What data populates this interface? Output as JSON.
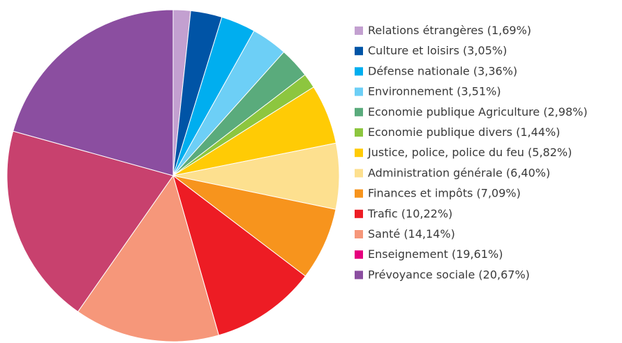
{
  "chart_data": {
    "type": "pie",
    "categories": [
      "Relations étrangères",
      "Culture et loisirs",
      "Défense nationale",
      "Environnement",
      "Economie publique Agriculture",
      "Economie publique divers",
      "Justice, police, police du feu",
      "Administration générale",
      "Finances et impôts",
      "Trafic",
      "Santé",
      "Enseignement",
      "Prévoyance sociale"
    ],
    "values": [
      1.69,
      3.05,
      3.36,
      3.51,
      2.98,
      1.44,
      5.82,
      6.4,
      7.09,
      10.22,
      14.14,
      19.61,
      20.67
    ],
    "value_labels": [
      "(1,69%)",
      "(3,05%)",
      "(3,36%)",
      "(3,51%)",
      "(2,98%)",
      "(1,44%)",
      "(5,82%)",
      "(6,40%)",
      "(7,09%)",
      "(10,22%)",
      "(14,14%)",
      "(19,61%)",
      "(20,67%)"
    ],
    "colors": [
      "#c3a0d0",
      "#0054a6",
      "#00aeef",
      "#6dcff6",
      "#5aab7c",
      "#8dc63f",
      "#ffcb05",
      "#fde08f",
      "#f7941d",
      "#ed1c24",
      "#f6977a",
      "#c8416e",
      "#8b4ea0"
    ],
    "legend_colors": [
      "#c3a0d0",
      "#0054a6",
      "#00aeef",
      "#6dcff6",
      "#5aab7c",
      "#8dc63f",
      "#ffcb05",
      "#fde08f",
      "#f7941d",
      "#ed1c24",
      "#f6977a",
      "#e6007e",
      "#8b4ea0"
    ],
    "legend": "right"
  }
}
